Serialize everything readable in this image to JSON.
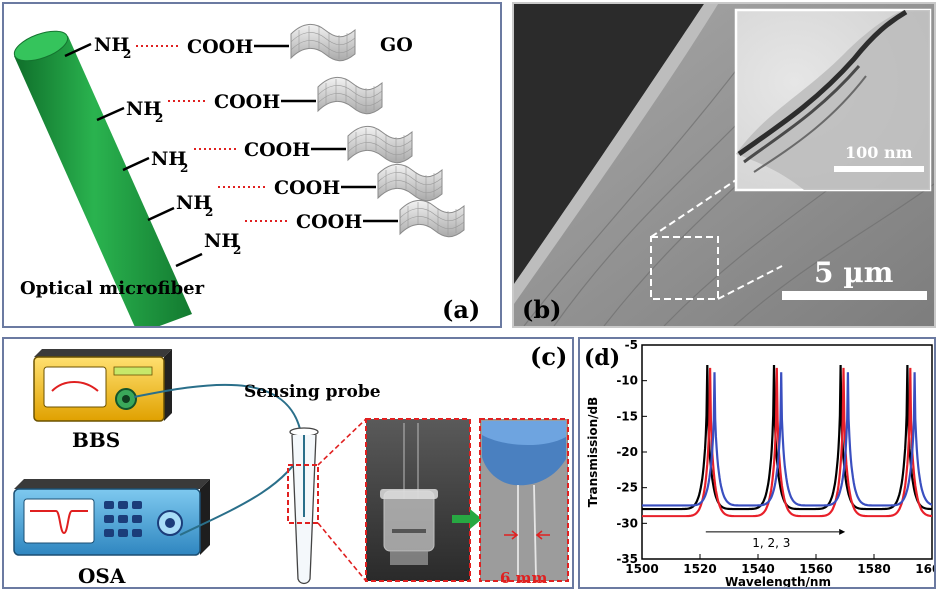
{
  "panel_a": {
    "label": "(a)",
    "amine": "NH",
    "amine_sub": "2",
    "acid": "COOH",
    "go_label": "GO",
    "fiber_label": "Optical microfiber",
    "fiber_color": "#1e9b3e",
    "bond_color": "#e02020"
  },
  "panel_b": {
    "label": "(b)",
    "scale_main": "5 µm",
    "scale_inset": "100 nm"
  },
  "panel_c": {
    "label": "(c)",
    "probe_label": "Sensing probe",
    "bbs_label": "BBS",
    "osa_label": "OSA",
    "gap_label": "6 mm",
    "accent_red": "#e02020",
    "arrow_green": "#27a842"
  },
  "panel_d": {
    "label": "(d)",
    "annotation": "1, 2, 3"
  },
  "chart_data": {
    "type": "line",
    "xlabel": "Wavelength/nm",
    "ylabel": "Transmission/dB",
    "xlim": [
      1500,
      1600
    ],
    "ylim": [
      -35,
      -5
    ],
    "xticks": [
      1500,
      1520,
      1540,
      1560,
      1580,
      1600
    ],
    "yticks": [
      -5,
      -10,
      -15,
      -20,
      -25,
      -30,
      -35
    ],
    "grid": false,
    "series": [
      {
        "color": "#000000",
        "dips": [
          1522.5,
          1545.5,
          1568.5,
          1591.5
        ],
        "peak_db": -7.8,
        "dip_db": -28.0
      },
      {
        "color": "#e8202a",
        "dips": [
          1523.5,
          1546.5,
          1569.5,
          1592.5
        ],
        "peak_db": -8.2,
        "dip_db": -29.0
      },
      {
        "color": "#3a4fc0",
        "dips": [
          1525.0,
          1548.0,
          1571.0,
          1594.0
        ],
        "peak_db": -8.8,
        "dip_db": -27.5
      }
    ]
  }
}
